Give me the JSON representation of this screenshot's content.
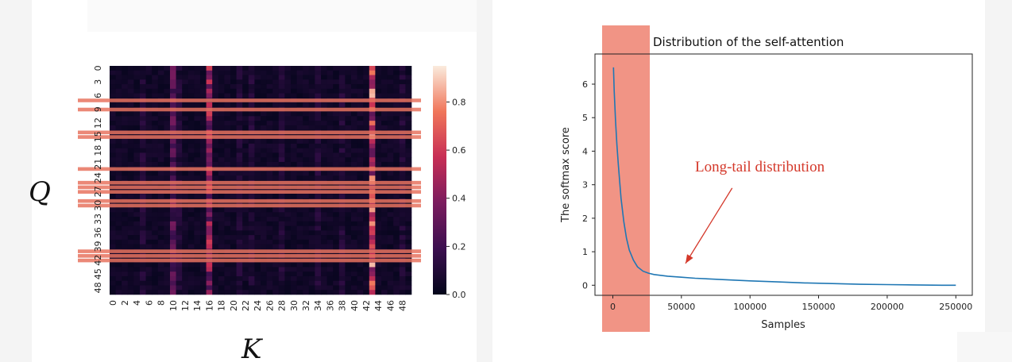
{
  "chart_data": [
    {
      "type": "heatmap",
      "xlabel": "K",
      "ylabel": "Q",
      "x_ticks": [
        "0",
        "2",
        "4",
        "6",
        "8",
        "10",
        "12",
        "14",
        "16",
        "18",
        "20",
        "22",
        "24",
        "26",
        "28",
        "30",
        "32",
        "34",
        "36",
        "38",
        "40",
        "42",
        "44",
        "46",
        "48"
      ],
      "y_ticks": [
        "0",
        "3",
        "6",
        "9",
        "12",
        "15",
        "18",
        "21",
        "24",
        "27",
        "30",
        "33",
        "36",
        "39",
        "42",
        "45",
        "48"
      ],
      "rows": 50,
      "cols": 50,
      "colorbar_ticks": [
        "0.0",
        "0.2",
        "0.4",
        "0.6",
        "0.8"
      ],
      "colorbar_range": [
        0,
        0.95
      ],
      "strong_columns": [
        {
          "col": 10,
          "intensity": 0.35
        },
        {
          "col": 16,
          "intensity": 0.6
        },
        {
          "col": 43,
          "intensity": 0.85
        }
      ],
      "highlighted_rows": [
        7,
        9,
        14,
        15,
        22,
        25,
        26,
        27,
        29,
        30,
        40,
        41,
        42
      ],
      "highlight_color": "#e8735f"
    },
    {
      "type": "line",
      "title": "Distribution of the self-attention",
      "xlabel": "Samples",
      "ylabel": "The softmax score",
      "xlim": [
        -13000,
        262000
      ],
      "ylim": [
        -0.3,
        6.9
      ],
      "x_ticks": [
        0,
        50000,
        100000,
        150000,
        200000,
        250000
      ],
      "y_ticks": [
        0,
        1,
        2,
        3,
        4,
        5,
        6
      ],
      "series": [
        {
          "color": "#1f77b4",
          "x": [
            500,
            1000,
            2000,
            3000,
            4000,
            5000,
            6000,
            8000,
            10000,
            12000,
            15000,
            18000,
            22000,
            26000,
            30000,
            40000,
            50000,
            60000,
            80000,
            100000,
            120000,
            140000,
            160000,
            180000,
            200000,
            220000,
            240000,
            250000
          ],
          "y": [
            6.5,
            5.8,
            4.9,
            4.2,
            3.6,
            3.1,
            2.6,
            1.9,
            1.4,
            1.05,
            0.75,
            0.55,
            0.42,
            0.36,
            0.32,
            0.27,
            0.24,
            0.21,
            0.17,
            0.13,
            0.1,
            0.07,
            0.05,
            0.03,
            0.02,
            0.01,
            0.0,
            0.0
          ]
        }
      ],
      "highlight_span": [
        -13000,
        27000
      ],
      "highlight_color": "#f08878",
      "annotation": {
        "text": "Long-tail distribution",
        "color": "#d4382a",
        "arrow_from": [
          87000,
          2.9
        ],
        "arrow_to": [
          53000,
          0.65
        ]
      }
    }
  ]
}
